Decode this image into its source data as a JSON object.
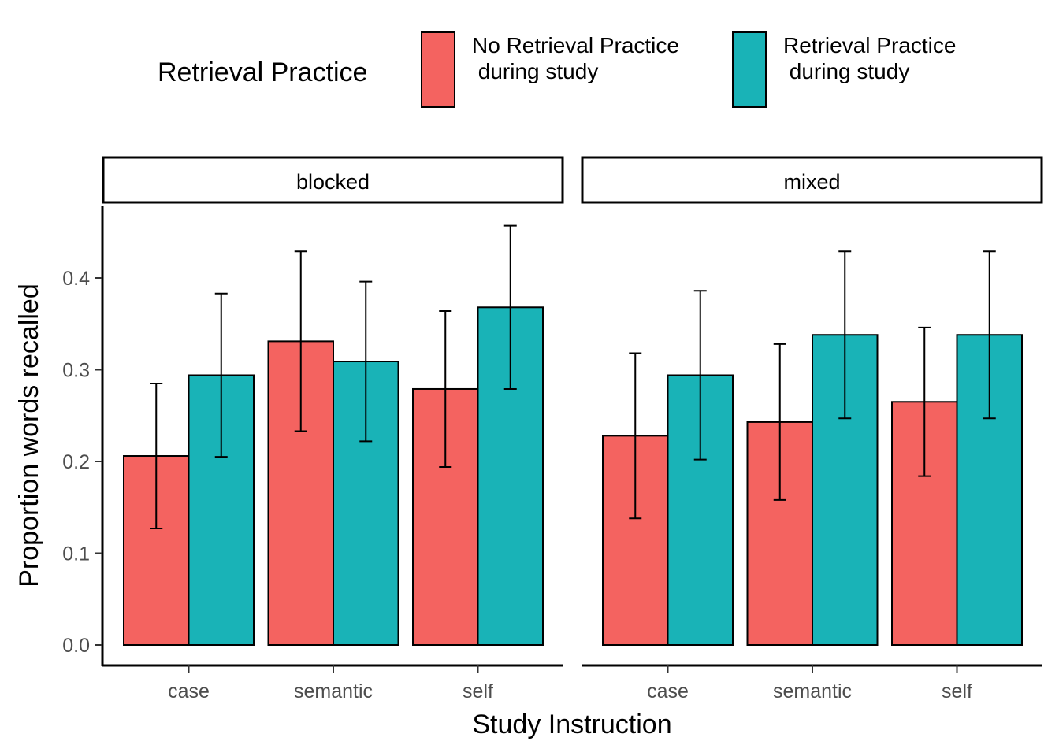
{
  "chart_data": {
    "type": "bar",
    "ylabel": "Proportion words recalled",
    "xlabel": "Study Instruction",
    "ylim": [
      0,
      0.48
    ],
    "yticks": [
      "0.0",
      "0.1",
      "0.2",
      "0.3",
      "0.4"
    ],
    "error_bars": true,
    "grid": false,
    "legend": {
      "title": "Retrieval Practice",
      "position": "top",
      "entries": [
        {
          "lines": [
            "No Retrieval Practice",
            " during study"
          ],
          "color": "#F46360"
        },
        {
          "lines": [
            "Retrieval Practice",
            " during study"
          ],
          "color": "#19B3B7"
        }
      ]
    },
    "panels": [
      {
        "title": "blocked",
        "categories": [
          "case",
          "semantic",
          "self"
        ],
        "series": [
          {
            "values": [
              0.206,
              0.331,
              0.279
            ],
            "lower": [
              0.127,
              0.233,
              0.194
            ],
            "upper": [
              0.285,
              0.429,
              0.364
            ]
          },
          {
            "values": [
              0.294,
              0.309,
              0.368
            ],
            "lower": [
              0.205,
              0.222,
              0.279
            ],
            "upper": [
              0.383,
              0.396,
              0.457
            ]
          }
        ]
      },
      {
        "title": "mixed",
        "categories": [
          "case",
          "semantic",
          "self"
        ],
        "series": [
          {
            "values": [
              0.228,
              0.243,
              0.265
            ],
            "lower": [
              0.138,
              0.158,
              0.184
            ],
            "upper": [
              0.318,
              0.328,
              0.346
            ]
          },
          {
            "values": [
              0.294,
              0.338,
              0.338
            ],
            "lower": [
              0.202,
              0.247,
              0.247
            ],
            "upper": [
              0.386,
              0.429,
              0.429
            ]
          }
        ]
      }
    ]
  }
}
